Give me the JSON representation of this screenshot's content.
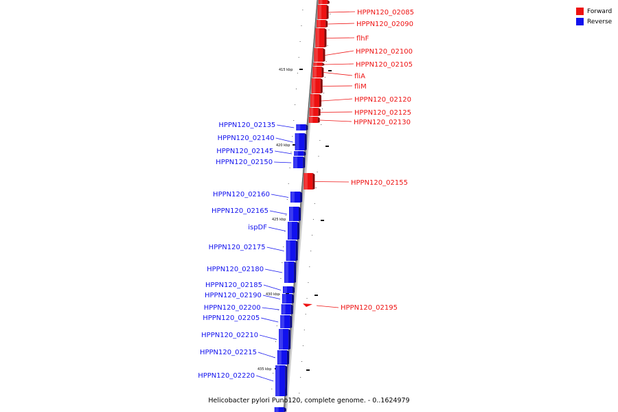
{
  "caption": "Helicobacter pylori Puno120, complete genome. - 0..1624979",
  "colors": {
    "forward": "#ee1111",
    "reverse": "#1111ee",
    "backbone": "#999999"
  },
  "legend": [
    {
      "label": "Forward",
      "strand": "forward"
    },
    {
      "label": "Reverse",
      "strand": "reverse"
    }
  ],
  "ticks": [
    "415 kbp",
    "420 kbp",
    "425 kbp",
    "430 kbp",
    "435 kbp"
  ],
  "forward_genes": [
    "HPPN120_02085",
    "HPPN120_02090",
    "flhF",
    "HPPN120_02100",
    "HPPN120_02105",
    "fliA",
    "fliM",
    "HPPN120_02120",
    "HPPN120_02125",
    "HPPN120_02130",
    "HPPN120_02155",
    "HPPN120_02195"
  ],
  "reverse_genes": [
    "HPPN120_02135",
    "HPPN120_02140",
    "HPPN120_02145",
    "HPPN120_02150",
    "HPPN120_02160",
    "HPPN120_02165",
    "ispDF",
    "HPPN120_02175",
    "HPPN120_02180",
    "HPPN120_02185",
    "HPPN120_02190",
    "HPPN120_02200",
    "HPPN120_02205",
    "HPPN120_02210",
    "HPPN120_02215",
    "HPPN120_02220"
  ]
}
